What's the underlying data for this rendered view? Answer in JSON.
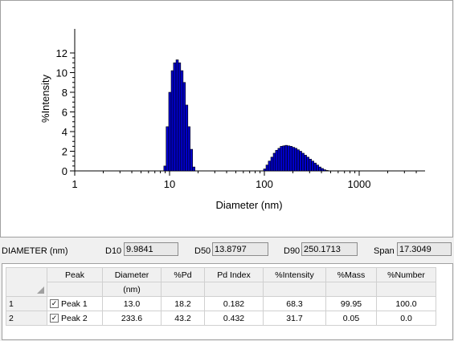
{
  "chart_data": {
    "type": "bar",
    "ylabel": "%Intensity",
    "xlabel": "Diameter (nm)",
    "xscale": "log",
    "xlim": [
      1,
      4500
    ],
    "ylim": [
      0,
      12
    ],
    "x_ticks": [
      "1",
      "10",
      "100",
      "1000"
    ],
    "y_ticks": [
      "0",
      "2",
      "4",
      "6",
      "8",
      "10",
      "12"
    ],
    "bar_color": "#0000cc",
    "bars": [
      {
        "x": 8.7,
        "y": 0.5
      },
      {
        "x": 9.2,
        "y": 4.5
      },
      {
        "x": 9.8,
        "y": 8.0
      },
      {
        "x": 10.4,
        "y": 10.2
      },
      {
        "x": 11.0,
        "y": 11.0
      },
      {
        "x": 11.7,
        "y": 11.3
      },
      {
        "x": 12.4,
        "y": 11.0
      },
      {
        "x": 13.1,
        "y": 10.2
      },
      {
        "x": 13.9,
        "y": 9.0
      },
      {
        "x": 14.7,
        "y": 6.7
      },
      {
        "x": 15.6,
        "y": 4.5
      },
      {
        "x": 16.5,
        "y": 2.2
      },
      {
        "x": 17.5,
        "y": 0.4
      },
      {
        "x": 98,
        "y": 0.2
      },
      {
        "x": 104,
        "y": 0.6
      },
      {
        "x": 110,
        "y": 1.0
      },
      {
        "x": 117,
        "y": 1.4
      },
      {
        "x": 124,
        "y": 1.8
      },
      {
        "x": 131,
        "y": 2.1
      },
      {
        "x": 139,
        "y": 2.3
      },
      {
        "x": 147,
        "y": 2.5
      },
      {
        "x": 156,
        "y": 2.55
      },
      {
        "x": 165,
        "y": 2.6
      },
      {
        "x": 175,
        "y": 2.55
      },
      {
        "x": 186,
        "y": 2.5
      },
      {
        "x": 197,
        "y": 2.4
      },
      {
        "x": 209,
        "y": 2.3
      },
      {
        "x": 221,
        "y": 2.15
      },
      {
        "x": 234,
        "y": 2.0
      },
      {
        "x": 248,
        "y": 1.8
      },
      {
        "x": 263,
        "y": 1.6
      },
      {
        "x": 279,
        "y": 1.4
      },
      {
        "x": 296,
        "y": 1.2
      },
      {
        "x": 314,
        "y": 1.0
      },
      {
        "x": 333,
        "y": 0.8
      },
      {
        "x": 353,
        "y": 0.6
      },
      {
        "x": 374,
        "y": 0.4
      },
      {
        "x": 396,
        "y": 0.25
      },
      {
        "x": 420,
        "y": 0.12
      },
      {
        "x": 445,
        "y": 0.05
      }
    ]
  },
  "stats": {
    "diameter_label": "DIAMETER (nm)",
    "d10_label": "D10",
    "d10_value": "9.9841",
    "d50_label": "D50",
    "d50_value": "13.8797",
    "d90_label": "D90",
    "d90_value": "250.1713",
    "span_label": "Span",
    "span_value": "17.3049"
  },
  "table": {
    "headers": [
      "Peak",
      "Diameter",
      "%Pd",
      "Pd Index",
      "%Intensity",
      "%Mass",
      "%Number"
    ],
    "units": [
      "",
      "(nm)",
      "",
      "",
      "",
      "",
      ""
    ],
    "rows": [
      {
        "index": "1",
        "checked": true,
        "peak": "Peak 1",
        "diameter": "13.0",
        "pd": "18.2",
        "pd_index": "0.182",
        "intensity": "68.3",
        "mass": "99.95",
        "number": "100.0"
      },
      {
        "index": "2",
        "checked": true,
        "peak": "Peak 2",
        "diameter": "233.6",
        "pd": "43.2",
        "pd_index": "0.432",
        "intensity": "31.7",
        "mass": "0.05",
        "number": "0.0"
      }
    ]
  }
}
